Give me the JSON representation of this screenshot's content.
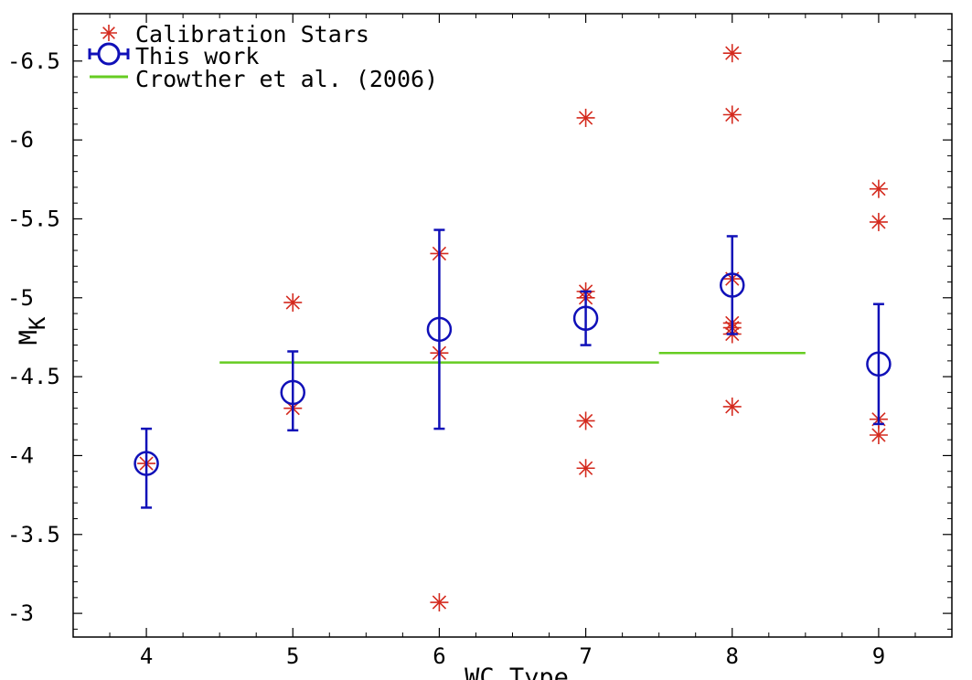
{
  "chart_data": {
    "type": "scatter",
    "title": "",
    "xlabel": "WC Type",
    "ylabel": "M",
    "ylabel_sub": "K",
    "xlim": [
      3.5,
      9.5
    ],
    "ylim": [
      -2.85,
      -6.8
    ],
    "y_reversed": true,
    "x_ticks": [
      4,
      5,
      6,
      7,
      8,
      9
    ],
    "x_tick_labels": [
      "4",
      "5",
      "6",
      "7",
      "8",
      "9"
    ],
    "y_ticks": [
      -3,
      -3.5,
      -4,
      -4.5,
      -5,
      -5.5,
      -6,
      -6.5
    ],
    "y_tick_labels": [
      "-3",
      "-3.5",
      "-4",
      "-4.5",
      "-5",
      "-5.5",
      "-6",
      "-6.5"
    ],
    "grid": false,
    "legend_position": "top-left",
    "series": [
      {
        "name": "Calibration Stars",
        "kind": "points",
        "marker": "asterisk",
        "color": "#d42a1e",
        "points": [
          [
            4,
            -3.95
          ],
          [
            5,
            -4.97
          ],
          [
            5,
            -4.3
          ],
          [
            6,
            -5.28
          ],
          [
            6,
            -4.65
          ],
          [
            6,
            -3.07
          ],
          [
            7,
            -6.14
          ],
          [
            7,
            -5.04
          ],
          [
            7,
            -5.0
          ],
          [
            7,
            -4.22
          ],
          [
            7,
            -3.92
          ],
          [
            8,
            -6.55
          ],
          [
            8,
            -6.16
          ],
          [
            8,
            -5.12
          ],
          [
            8,
            -4.84
          ],
          [
            8,
            -4.81
          ],
          [
            8,
            -4.77
          ],
          [
            8,
            -4.31
          ],
          [
            9,
            -5.69
          ],
          [
            9,
            -5.48
          ],
          [
            9,
            -4.23
          ],
          [
            9,
            -4.13
          ]
        ]
      },
      {
        "name": "This work",
        "kind": "errorbar",
        "marker": "circle",
        "color": "#1010b8",
        "points": [
          {
            "x": 4,
            "y": -3.95,
            "err_low": -3.67,
            "err_high": -4.17
          },
          {
            "x": 5,
            "y": -4.4,
            "err_low": -4.16,
            "err_high": -4.66
          },
          {
            "x": 6,
            "y": -4.8,
            "err_low": -4.17,
            "err_high": -5.43
          },
          {
            "x": 7,
            "y": -4.87,
            "err_low": -4.7,
            "err_high": -5.04
          },
          {
            "x": 8,
            "y": -5.08,
            "err_low": -4.77,
            "err_high": -5.39
          },
          {
            "x": 9,
            "y": -4.58,
            "err_low": -4.2,
            "err_high": -4.96
          }
        ]
      },
      {
        "name": "Crowther et al. (2006)",
        "kind": "segments",
        "color": "#66cc22",
        "segments": [
          {
            "x": [
              4.5,
              7.5
            ],
            "y": -4.59
          },
          {
            "x": [
              7.5,
              8.5
            ],
            "y": -4.65
          }
        ]
      }
    ]
  }
}
